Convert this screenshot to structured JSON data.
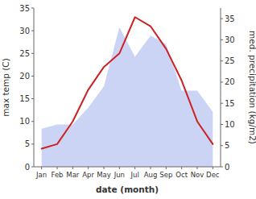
{
  "chart_data": {
    "type": "line",
    "xlabel": "date (month)",
    "ylabel": "max temp (C)",
    "y2label": "med. precipitation (kg/m2)",
    "categories": [
      "Jan",
      "Feb",
      "Mar",
      "Apr",
      "May",
      "Jun",
      "Jul",
      "Aug",
      "Sep",
      "Oct",
      "Nov",
      "Dec"
    ],
    "series": [
      {
        "type": "area",
        "axis": "y2",
        "color": "#aab8f0",
        "values": [
          9,
          10,
          10,
          14,
          19,
          33,
          26,
          31,
          29,
          18,
          18,
          13
        ]
      },
      {
        "type": "line",
        "color": "#cc2222",
        "values": [
          4,
          5,
          10,
          17,
          22,
          25,
          33,
          31,
          26,
          19,
          10,
          5
        ]
      }
    ],
    "ylim": [
      0,
      35
    ],
    "yticks": [
      0,
      5,
      10,
      15,
      20,
      25,
      30,
      35
    ],
    "y2lim": [
      0,
      37.5
    ],
    "y2ticks": [
      0,
      5,
      10,
      15,
      20,
      25,
      30,
      35
    ]
  }
}
